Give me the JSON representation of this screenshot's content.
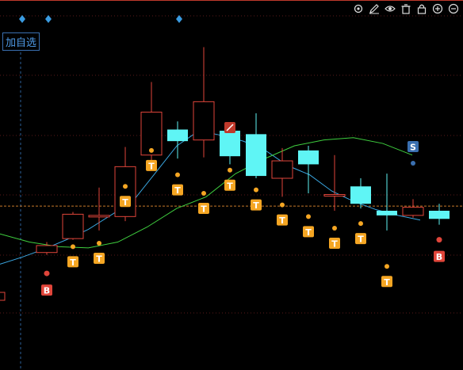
{
  "toolbar": {
    "icons": [
      "gear-icon",
      "pencil-icon",
      "eye-icon",
      "trash-icon",
      "lock-icon",
      "zoom-in-icon",
      "zoom-out-icon"
    ]
  },
  "watchlist_button": {
    "label": "加自选"
  },
  "colors": {
    "up": "#e0453a",
    "down": "#5ff5f5",
    "ma_short": "#3aa6e0",
    "ma_long": "#3fcf3f",
    "grid": "#5a1a1a",
    "marker_T": "#f5a623",
    "marker_B": "#e0453a",
    "marker_S": "#3a6fb0",
    "diamond": "#3a9be0"
  },
  "chart_data": {
    "type": "candlestick",
    "candles": [
      {
        "open": 38.0,
        "close": 41.0,
        "high": 42.5,
        "low": 37.0
      },
      {
        "open": 44.0,
        "close": 54.5,
        "high": 55.5,
        "low": 43.5
      },
      {
        "open": 53.5,
        "close": 54.0,
        "high": 66.0,
        "low": 47.5
      },
      {
        "open": 53.5,
        "close": 75.0,
        "high": 83.5,
        "low": 51.5
      },
      {
        "open": 80.0,
        "close": 98.5,
        "high": 111.5,
        "low": 76.5
      },
      {
        "open": 91.0,
        "close": 86.0,
        "high": 94.5,
        "low": 78.5
      },
      {
        "open": 86.5,
        "close": 103.0,
        "high": 126.5,
        "low": 79.0
      },
      {
        "open": 90.5,
        "close": 79.5,
        "high": 92.0,
        "low": 76.0
      },
      {
        "open": 89.0,
        "close": 71.0,
        "high": 98.0,
        "low": 70.0
      },
      {
        "open": 70.0,
        "close": 77.5,
        "high": 83.0,
        "low": 62.0
      },
      {
        "open": 82.0,
        "close": 76.0,
        "high": 84.0,
        "low": 63.5
      },
      {
        "open": 63.0,
        "close": 63.0,
        "high": 80.0,
        "low": 56.0
      },
      {
        "open": 66.5,
        "close": 59.0,
        "high": 70.0,
        "low": 57.0
      },
      {
        "open": 56.0,
        "close": 54.0,
        "high": 72.0,
        "low": 47.5
      },
      {
        "open": 54.0,
        "close": 57.5,
        "high": 61.0,
        "low": 53.0
      },
      {
        "open": 56.0,
        "close": 52.5,
        "high": 59.0,
        "low": 50.0
      }
    ],
    "ma_short": [
      33,
      36.0,
      39.5,
      43.5,
      48.0,
      54,
      60.0,
      72,
      84.0,
      90.5,
      88.5,
      86.0,
      82.0,
      75.5,
      71.5,
      64.5,
      60.0,
      56.5,
      54.0,
      52.0
    ],
    "ma_long": [
      46.0,
      42.5,
      40.5,
      40.0,
      42.5,
      49.0,
      57.0,
      62.0,
      72.0,
      78.5,
      84.0,
      86.5,
      87.5,
      85.0,
      80.0
    ],
    "T_markers": [
      {
        "candle": 1,
        "side": "below",
        "dot": 40.5
      },
      {
        "candle": 2,
        "side": "below",
        "dot": 42.0
      },
      {
        "candle": 3,
        "side": "below",
        "dot": 66.5
      },
      {
        "candle": 4,
        "side": "below",
        "dot": 82.0
      },
      {
        "candle": 5,
        "side": "below",
        "dot": 71.5
      },
      {
        "candle": 6,
        "side": "below",
        "dot": 63.5
      },
      {
        "candle": 7,
        "side": "below",
        "dot": 73.5
      },
      {
        "candle": 8,
        "side": "below",
        "dot": 65.0
      },
      {
        "candle": 9,
        "side": "below",
        "dot": 58.5
      },
      {
        "candle": 10,
        "side": "below",
        "dot": 53.5
      },
      {
        "candle": 11,
        "side": "below",
        "dot": 48.5
      },
      {
        "candle": 12,
        "side": "below",
        "dot": 50.5
      },
      {
        "candle": 13,
        "side": "below",
        "dot": 32.0
      }
    ],
    "B_markers": [
      {
        "candle": 0,
        "dot": 29.0
      },
      {
        "candle": 15,
        "dot": 43.5
      }
    ],
    "S_markers": [
      {
        "candle": 14,
        "dot": 76.5
      }
    ],
    "price_line": 58,
    "ylim": [
      0,
      140
    ],
    "grid": true
  }
}
